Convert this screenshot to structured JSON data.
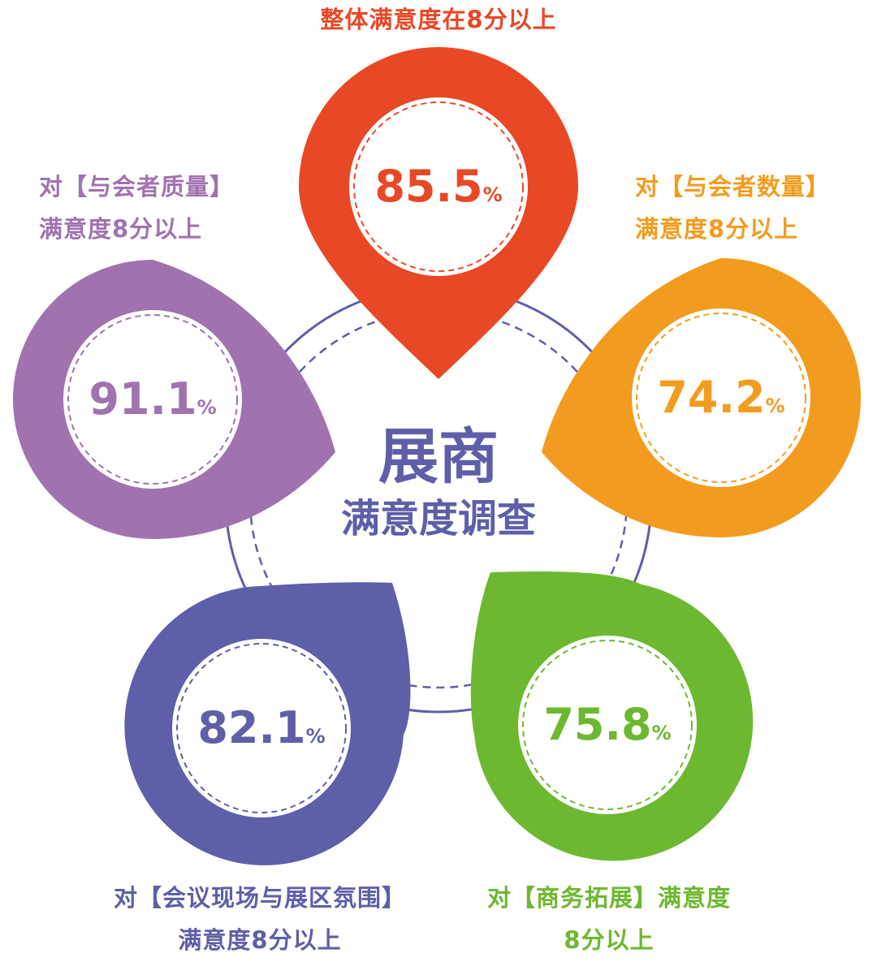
{
  "center": {
    "title": "展商",
    "subtitle": "满意度调查"
  },
  "colors": {
    "red": "#E84826",
    "orange": "#F29C1F",
    "purple": "#A073AF",
    "indigo": "#5E5FA8",
    "green": "#6DB830",
    "ring": "#5E5FA8"
  },
  "items": [
    {
      "id": "overall",
      "value": "85.5",
      "unit": "%",
      "label_lines": [
        "整体满意度在8分以上"
      ],
      "color": "#E84826"
    },
    {
      "id": "attendee-quantity",
      "value": "74.2",
      "unit": "%",
      "label_lines": [
        "对【与会者数量】",
        "满意度8分以上"
      ],
      "color": "#F29C1F"
    },
    {
      "id": "attendee-quality",
      "value": "91.1",
      "unit": "%",
      "label_lines": [
        "对【与会者质量】",
        "满意度8分以上"
      ],
      "color": "#A073AF"
    },
    {
      "id": "venue-atmosphere",
      "value": "82.1",
      "unit": "%",
      "label_lines": [
        "对【会议现场与展区氛围】",
        "满意度8分以上"
      ],
      "color": "#5E5FA8"
    },
    {
      "id": "business-expansion",
      "value": "75.8",
      "unit": "%",
      "label_lines": [
        "对【商务拓展】满意度",
        "8分以上"
      ],
      "color": "#6DB830"
    }
  ]
}
